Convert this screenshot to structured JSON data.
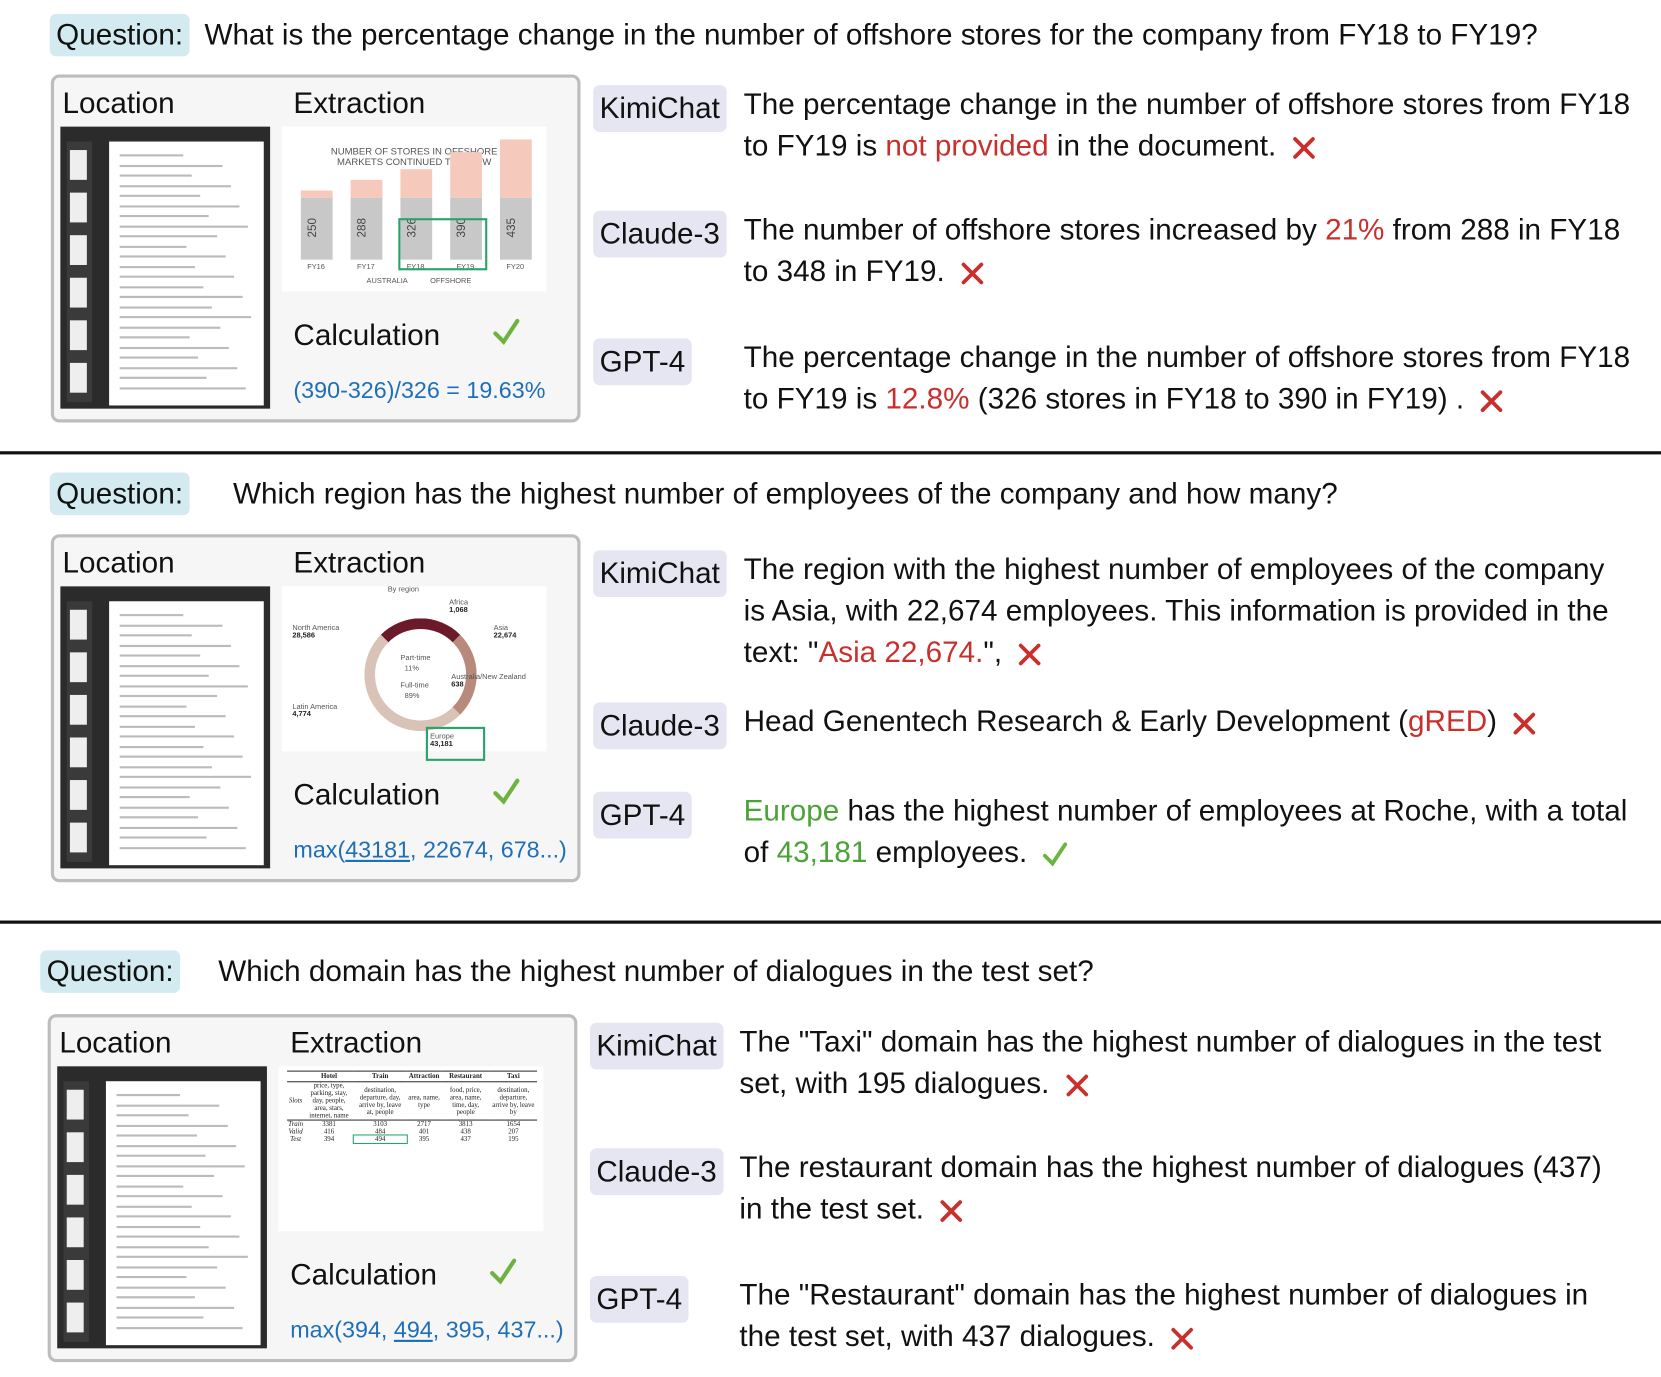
{
  "panels": [
    {
      "question_label": "Question:",
      "question": "What is the percentage change in the number of offshore stores for the company from FY18 to FY19?",
      "location_label": "Location",
      "extraction_label": "Extraction",
      "calculation_label": "Calculation",
      "calculation_verdict": "correct",
      "calculation": [
        {
          "text": "(390-326)/326 = 19.63%",
          "style": "plain"
        }
      ],
      "extraction": {
        "kind": "bar",
        "title": "NUMBER OF STORES IN OFFSHORE MARKETS CONTINUED TO GROW",
        "categories": [
          "FY16",
          "FY17",
          "FY18",
          "FY19",
          "FY20"
        ],
        "values": [
          250,
          288,
          326,
          390,
          435
        ],
        "legend": [
          "AUSTRALIA",
          "OFFSHORE"
        ]
      },
      "answers": [
        {
          "model": "KimiChat",
          "verdict": "wrong",
          "segments": [
            {
              "text": "The percentage change in the number of offshore stores from FY18 to FY19 is ",
              "style": "plain"
            },
            {
              "text": "not provided",
              "style": "red"
            },
            {
              "text": " in the document.",
              "style": "plain"
            }
          ]
        },
        {
          "model": "Claude-3",
          "verdict": "wrong",
          "segments": [
            {
              "text": "The number of offshore stores increased by ",
              "style": "plain"
            },
            {
              "text": "21%",
              "style": "red"
            },
            {
              "text": " from 288 in FY18 to 348 in FY19.",
              "style": "plain"
            }
          ]
        },
        {
          "model": "GPT-4",
          "verdict": "wrong",
          "segments": [
            {
              "text": "The percentage change in the number of offshore stores from FY18 to FY19 is ",
              "style": "plain"
            },
            {
              "text": "12.8%",
              "style": "red"
            },
            {
              "text": " (326 stores in FY18 to 390 in FY19) .",
              "style": "plain"
            }
          ]
        }
      ]
    },
    {
      "question_label": "Question:",
      "question": "Which region has the highest number of employees of the company and how many?",
      "location_label": "Location",
      "extraction_label": "Extraction",
      "calculation_label": "Calculation",
      "calculation_verdict": "correct",
      "calculation": [
        {
          "text": "max(",
          "style": "plain"
        },
        {
          "text": "43181",
          "style": "underline"
        },
        {
          "text": ", 22674, 678...)",
          "style": "plain"
        }
      ],
      "extraction": {
        "kind": "donut",
        "title": "By region",
        "center": [
          "Part-time",
          "11%",
          "Full-time",
          "89%"
        ],
        "regions": [
          {
            "name": "Africa",
            "value": "1,068"
          },
          {
            "name": "Asia",
            "value": "22,674"
          },
          {
            "name": "North America",
            "value": "28,586"
          },
          {
            "name": "Australia/New Zealand",
            "value": "638"
          },
          {
            "name": "Latin America",
            "value": "4,774"
          },
          {
            "name": "Europe",
            "value": "43,181"
          }
        ]
      },
      "answers": [
        {
          "model": "KimiChat",
          "verdict": "wrong",
          "segments": [
            {
              "text": "The region with the highest number of employees of the company is Asia, with 22,674 employees. This information is provided in the text: \"",
              "style": "plain"
            },
            {
              "text": "Asia 22,674.",
              "style": "red"
            },
            {
              "text": "\",",
              "style": "plain"
            }
          ]
        },
        {
          "model": "Claude-3",
          "verdict": "wrong",
          "segments": [
            {
              "text": "Head Genentech Research & Early Development (",
              "style": "plain"
            },
            {
              "text": "gRED",
              "style": "red"
            },
            {
              "text": ")",
              "style": "plain"
            }
          ]
        },
        {
          "model": "GPT-4",
          "verdict": "correct",
          "segments": [
            {
              "text": "Europe",
              "style": "green"
            },
            {
              "text": " has the highest number of employees at Roche, with a total of ",
              "style": "plain"
            },
            {
              "text": "43,181",
              "style": "green"
            },
            {
              "text": " employees.",
              "style": "plain"
            }
          ]
        }
      ]
    },
    {
      "question_label": "Question:",
      "question": "Which domain has the highest number of dialogues in the test set?",
      "location_label": "Location",
      "extraction_label": "Extraction",
      "calculation_label": "Calculation",
      "calculation_verdict": "correct",
      "calculation": [
        {
          "text": "max(394, ",
          "style": "plain"
        },
        {
          "text": "494",
          "style": "underline"
        },
        {
          "text": ", 395, 437...)",
          "style": "plain"
        }
      ],
      "extraction": {
        "kind": "table",
        "header": [
          "",
          "Hotel",
          "Train",
          "Attraction",
          "Restaurant",
          "Taxi"
        ],
        "rows": [
          [
            "Slots",
            "price, type, parking, stay, day, people, area, stars, internet, name",
            "destination, departure, day, arrive by, leave at, people",
            "area, name, type",
            "food, price, area, name, time, day, people",
            "destination, departure, arrive by, leave by"
          ],
          [
            "Train",
            "3381",
            "3103",
            "2717",
            "3813",
            "1654"
          ],
          [
            "Valid",
            "416",
            "484",
            "401",
            "438",
            "207"
          ],
          [
            "Test",
            "394",
            "494",
            "395",
            "437",
            "195"
          ]
        ]
      },
      "answers": [
        {
          "model": "KimiChat",
          "verdict": "wrong",
          "segments": [
            {
              "text": "The \"Taxi\" domain has the highest number of dialogues in the test set, with 195 dialogues.",
              "style": "plain"
            }
          ]
        },
        {
          "model": "Claude-3",
          "verdict": "wrong",
          "segments": [
            {
              "text": "The restaurant domain has the highest number of dialogues (437) in the test set.",
              "style": "plain"
            }
          ]
        },
        {
          "model": "GPT-4",
          "verdict": "wrong",
          "segments": [
            {
              "text": "The \"Restaurant\" domain has the highest number of dialogues in the test set, with 437 dialogues.",
              "style": "plain"
            }
          ]
        }
      ]
    }
  ]
}
